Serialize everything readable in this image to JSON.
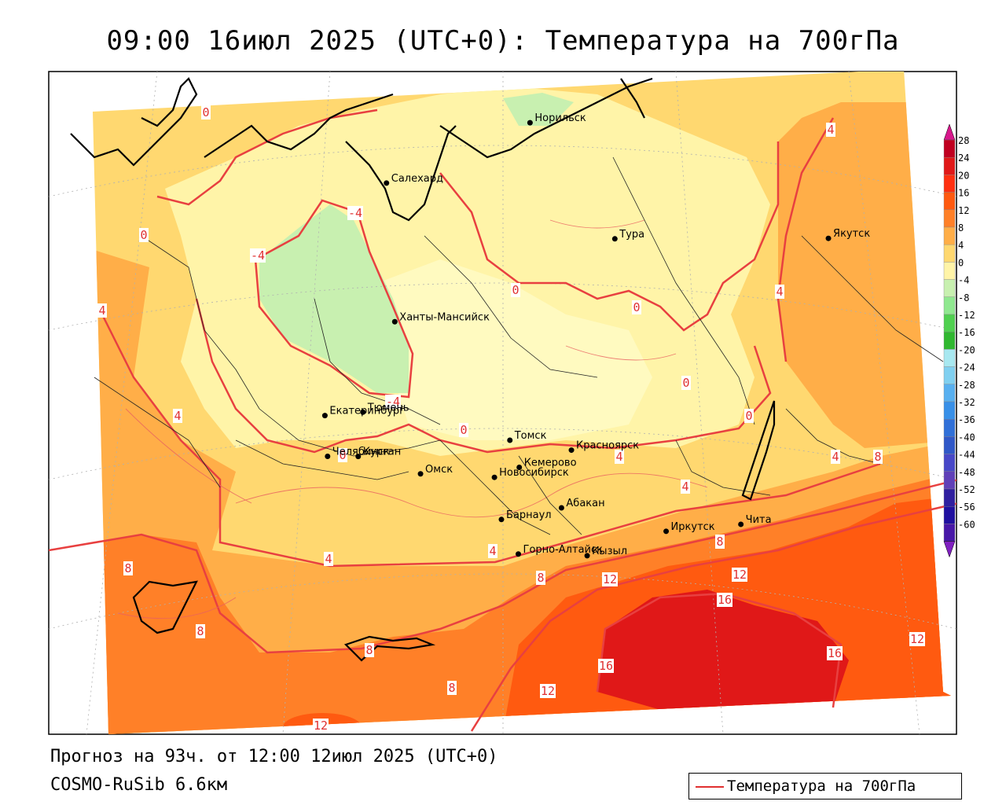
{
  "title": "09:00 16июл 2025 (UTC+0): Температура на 700гПа",
  "footer": {
    "forecast": "Прогноз на 93ч. от 12:00 12июл 2025 (UTC+0)",
    "model": "COSMO-RuSib 6.6км"
  },
  "legend": {
    "label": "Температура на 700гПа",
    "color": "#e03030"
  },
  "colorbar": {
    "ticks": [
      "28",
      "24",
      "20",
      "16",
      "12",
      "8",
      "4",
      "0",
      "-4",
      "-8",
      "-12",
      "-16",
      "-20",
      "-24",
      "-28",
      "-32",
      "-36",
      "-40",
      "-44",
      "-48",
      "-52",
      "-56",
      "-60"
    ],
    "colors": [
      "#c00020",
      "#e01818",
      "#ff3010",
      "#ff5a10",
      "#ff8028",
      "#ffae48",
      "#ffd870",
      "#fff4a8",
      "#c8f0b0",
      "#90e890",
      "#50d050",
      "#30b830",
      "#a8e8f0",
      "#80d0f0",
      "#58b0f0",
      "#3890e8",
      "#3070d8",
      "#3058c8",
      "#4848c8",
      "#6040b8",
      "#3020a0",
      "#2010a0",
      "#4818a8"
    ]
  },
  "cities": [
    {
      "name": "Якутск",
      "lon": 129.7,
      "lat": 62.0
    },
    {
      "name": "Норильск",
      "lon": 88.2,
      "lat": 69.3
    },
    {
      "name": "Салехард",
      "lon": 66.6,
      "lat": 66.5
    },
    {
      "name": "Тура",
      "lon": 100.2,
      "lat": 64.3
    },
    {
      "name": "Ханты-Мансийск",
      "lon": 69.0,
      "lat": 61.0
    },
    {
      "name": "Екатеринбург",
      "lon": 60.6,
      "lat": 56.8
    },
    {
      "name": "Тюмень",
      "lon": 65.5,
      "lat": 57.2
    },
    {
      "name": "Челябинск",
      "lon": 61.4,
      "lat": 55.2
    },
    {
      "name": "Курган",
      "lon": 65.3,
      "lat": 55.4
    },
    {
      "name": "Омск",
      "lon": 73.4,
      "lat": 55.0
    },
    {
      "name": "Томск",
      "lon": 84.9,
      "lat": 56.5
    },
    {
      "name": "Красноярск",
      "lon": 92.9,
      "lat": 56.0
    },
    {
      "name": "Новосибирск",
      "lon": 82.9,
      "lat": 55.0
    },
    {
      "name": "Кемерово",
      "lon": 86.1,
      "lat": 55.4
    },
    {
      "name": "Абакан",
      "lon": 91.4,
      "lat": 53.7
    },
    {
      "name": "Барнаул",
      "lon": 83.8,
      "lat": 53.3
    },
    {
      "name": "Горно-Алтайск",
      "lon": 85.9,
      "lat": 51.9
    },
    {
      "name": "Кызыл",
      "lon": 94.4,
      "lat": 51.7
    },
    {
      "name": "Иркутск",
      "lon": 104.3,
      "lat": 52.3
    },
    {
      "name": "Чита",
      "lon": 113.5,
      "lat": 52.0
    }
  ],
  "contour_labels": [
    "0",
    "0",
    "-4",
    "-4",
    "4",
    "-4",
    "0",
    "0",
    "4",
    "0",
    "0",
    "0",
    "4",
    "4",
    "4",
    "8",
    "4",
    "8",
    "8",
    "8",
    "8",
    "12",
    "12",
    "16",
    "16",
    "12",
    "16",
    "12",
    "12",
    "8",
    "4",
    "0",
    "4",
    "4",
    "8"
  ]
}
